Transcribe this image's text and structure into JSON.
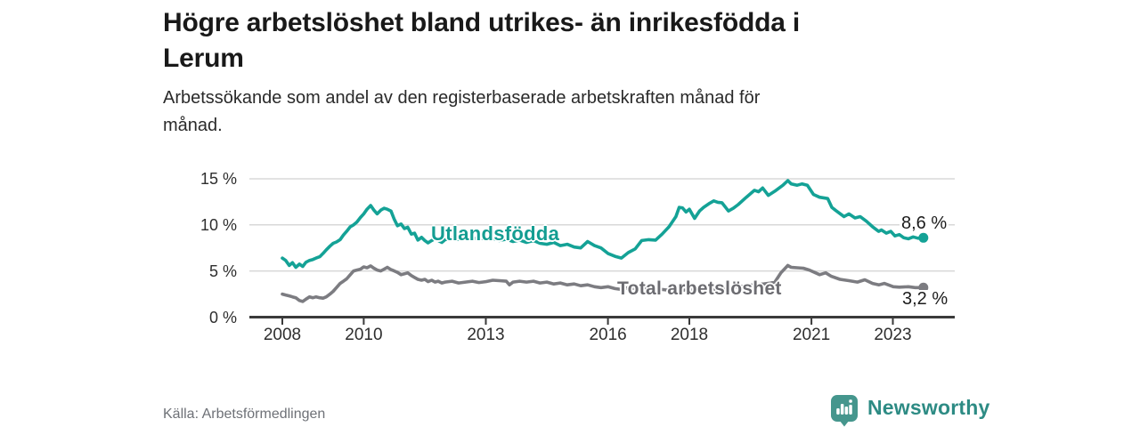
{
  "header": {
    "title": "Högre arbetslöshet bland utrikes- än inrikesfödda i\nLerum",
    "subtitle": "Arbetssökande som andel av den registerbaserade arbetskraften månad för\nmånad."
  },
  "footer": {
    "source": "Källa: Arbetsförmedlingen",
    "logo_text": "Newsworthy"
  },
  "colors": {
    "series_foreign": "#14a296",
    "series_foreign_label": "#149d92",
    "series_total": "#7c7c81",
    "series_total_label": "#6c6c71",
    "axis": "#3a3a3a",
    "gridline": "#d8d8d8",
    "logo_icon": "#45968d",
    "logo_text": "#2d8b84"
  },
  "chart_data": {
    "type": "line",
    "title": "Högre arbetslöshet bland utrikes- än inrikesfödda i Lerum",
    "subtitle": "Arbetssökande som andel av den registerbaserade arbetskraften månad för månad.",
    "unit": "%",
    "grid": "horizontal",
    "legend_position": "inline-labels",
    "ylim": [
      0,
      15
    ],
    "xlim_years": [
      2008,
      2023.75
    ],
    "y_ticks": [
      {
        "value": 0,
        "label": "0 %"
      },
      {
        "value": 5,
        "label": "5 %"
      },
      {
        "value": 10,
        "label": "10 %"
      },
      {
        "value": 15,
        "label": "15 %"
      }
    ],
    "x_ticks": [
      {
        "value": 2008,
        "label": "2008"
      },
      {
        "value": 2010,
        "label": "2010"
      },
      {
        "value": 2013,
        "label": "2013"
      },
      {
        "value": 2016,
        "label": "2016"
      },
      {
        "value": 2018,
        "label": "2018"
      },
      {
        "value": 2021,
        "label": "2021"
      },
      {
        "value": 2023,
        "label": "2023"
      }
    ],
    "series": [
      {
        "name": "Utlandsfödda",
        "end_label": "8,6 %",
        "end_value": 8.6,
        "color": "#14a296",
        "label_color": "#149d92",
        "points": [
          [
            2008.0,
            6.4
          ],
          [
            2008.08,
            6.15
          ],
          [
            2008.17,
            5.6
          ],
          [
            2008.25,
            5.9
          ],
          [
            2008.33,
            5.4
          ],
          [
            2008.42,
            5.75
          ],
          [
            2008.5,
            5.5
          ],
          [
            2008.58,
            5.95
          ],
          [
            2008.67,
            6.15
          ],
          [
            2008.75,
            6.25
          ],
          [
            2008.83,
            6.4
          ],
          [
            2008.92,
            6.55
          ],
          [
            2009.0,
            6.9
          ],
          [
            2009.08,
            7.3
          ],
          [
            2009.17,
            7.7
          ],
          [
            2009.25,
            8.0
          ],
          [
            2009.33,
            8.15
          ],
          [
            2009.42,
            8.4
          ],
          [
            2009.5,
            8.9
          ],
          [
            2009.58,
            9.3
          ],
          [
            2009.67,
            9.8
          ],
          [
            2009.75,
            10.0
          ],
          [
            2009.83,
            10.3
          ],
          [
            2009.92,
            10.8
          ],
          [
            2010.0,
            11.2
          ],
          [
            2010.08,
            11.7
          ],
          [
            2010.17,
            12.1
          ],
          [
            2010.25,
            11.6
          ],
          [
            2010.33,
            11.2
          ],
          [
            2010.42,
            11.6
          ],
          [
            2010.5,
            11.8
          ],
          [
            2010.58,
            11.7
          ],
          [
            2010.67,
            11.5
          ],
          [
            2010.75,
            10.6
          ],
          [
            2010.83,
            9.9
          ],
          [
            2010.92,
            10.1
          ],
          [
            2011.0,
            9.6
          ],
          [
            2011.08,
            9.75
          ],
          [
            2011.17,
            9.0
          ],
          [
            2011.25,
            9.1
          ],
          [
            2011.33,
            8.35
          ],
          [
            2011.42,
            8.65
          ],
          [
            2011.5,
            8.3
          ],
          [
            2011.58,
            8.05
          ],
          [
            2011.67,
            8.3
          ],
          [
            2011.75,
            8.5
          ],
          [
            2011.83,
            8.3
          ],
          [
            2011.92,
            8.1
          ],
          [
            2012.0,
            8.4
          ],
          [
            2012.17,
            8.6
          ],
          [
            2012.33,
            8.45
          ],
          [
            2012.5,
            8.65
          ],
          [
            2012.67,
            8.5
          ],
          [
            2012.83,
            8.6
          ],
          [
            2013.0,
            8.45
          ],
          [
            2013.17,
            8.55
          ],
          [
            2013.33,
            8.3
          ],
          [
            2013.5,
            8.45
          ],
          [
            2013.67,
            8.2
          ],
          [
            2013.83,
            8.35
          ],
          [
            2014.0,
            8.1
          ],
          [
            2014.17,
            8.3
          ],
          [
            2014.33,
            8.0
          ],
          [
            2014.5,
            7.9
          ],
          [
            2014.67,
            8.1
          ],
          [
            2014.83,
            7.75
          ],
          [
            2015.0,
            7.9
          ],
          [
            2015.17,
            7.6
          ],
          [
            2015.33,
            7.5
          ],
          [
            2015.5,
            8.2
          ],
          [
            2015.67,
            7.75
          ],
          [
            2015.83,
            7.5
          ],
          [
            2016.0,
            6.9
          ],
          [
            2016.17,
            6.6
          ],
          [
            2016.33,
            6.4
          ],
          [
            2016.5,
            7.0
          ],
          [
            2016.67,
            7.4
          ],
          [
            2016.83,
            8.3
          ],
          [
            2017.0,
            8.4
          ],
          [
            2017.17,
            8.35
          ],
          [
            2017.33,
            9.0
          ],
          [
            2017.5,
            9.8
          ],
          [
            2017.67,
            10.9
          ],
          [
            2017.75,
            11.9
          ],
          [
            2017.83,
            11.85
          ],
          [
            2017.92,
            11.4
          ],
          [
            2018.0,
            11.7
          ],
          [
            2018.13,
            10.7
          ],
          [
            2018.25,
            11.5
          ],
          [
            2018.35,
            11.9
          ],
          [
            2018.5,
            12.35
          ],
          [
            2018.6,
            12.6
          ],
          [
            2018.7,
            12.45
          ],
          [
            2018.8,
            12.4
          ],
          [
            2018.96,
            11.5
          ],
          [
            2019.08,
            11.8
          ],
          [
            2019.2,
            12.2
          ],
          [
            2019.4,
            13.0
          ],
          [
            2019.6,
            13.75
          ],
          [
            2019.7,
            13.6
          ],
          [
            2019.8,
            14.0
          ],
          [
            2019.94,
            13.2
          ],
          [
            2020.1,
            13.65
          ],
          [
            2020.3,
            14.3
          ],
          [
            2020.42,
            14.8
          ],
          [
            2020.5,
            14.45
          ],
          [
            2020.65,
            14.3
          ],
          [
            2020.77,
            14.45
          ],
          [
            2020.9,
            14.3
          ],
          [
            2021.05,
            13.3
          ],
          [
            2021.2,
            13.0
          ],
          [
            2021.4,
            12.85
          ],
          [
            2021.5,
            11.9
          ],
          [
            2021.6,
            11.55
          ],
          [
            2021.8,
            10.9
          ],
          [
            2021.92,
            11.2
          ],
          [
            2022.07,
            10.75
          ],
          [
            2022.2,
            10.9
          ],
          [
            2022.35,
            10.4
          ],
          [
            2022.5,
            9.8
          ],
          [
            2022.65,
            9.3
          ],
          [
            2022.72,
            9.45
          ],
          [
            2022.84,
            9.1
          ],
          [
            2022.95,
            9.3
          ],
          [
            2023.05,
            8.8
          ],
          [
            2023.16,
            8.95
          ],
          [
            2023.27,
            8.6
          ],
          [
            2023.38,
            8.5
          ],
          [
            2023.5,
            8.7
          ],
          [
            2023.62,
            8.55
          ],
          [
            2023.75,
            8.6
          ]
        ]
      },
      {
        "name": "Total arbetslöshet",
        "end_label": "3,2 %",
        "end_value": 3.2,
        "color": "#7c7c81",
        "label_color": "#6c6c71",
        "points": [
          [
            2008.0,
            2.5
          ],
          [
            2008.08,
            2.4
          ],
          [
            2008.17,
            2.3
          ],
          [
            2008.25,
            2.2
          ],
          [
            2008.33,
            2.1
          ],
          [
            2008.42,
            1.8
          ],
          [
            2008.5,
            1.7
          ],
          [
            2008.58,
            1.95
          ],
          [
            2008.67,
            2.2
          ],
          [
            2008.75,
            2.1
          ],
          [
            2008.83,
            2.2
          ],
          [
            2008.92,
            2.1
          ],
          [
            2009.0,
            2.05
          ],
          [
            2009.08,
            2.2
          ],
          [
            2009.17,
            2.5
          ],
          [
            2009.25,
            2.8
          ],
          [
            2009.33,
            3.2
          ],
          [
            2009.42,
            3.65
          ],
          [
            2009.5,
            3.9
          ],
          [
            2009.58,
            4.15
          ],
          [
            2009.67,
            4.6
          ],
          [
            2009.75,
            5.0
          ],
          [
            2009.83,
            5.1
          ],
          [
            2009.92,
            5.2
          ],
          [
            2010.0,
            5.45
          ],
          [
            2010.08,
            5.35
          ],
          [
            2010.17,
            5.55
          ],
          [
            2010.25,
            5.3
          ],
          [
            2010.33,
            5.1
          ],
          [
            2010.42,
            5.0
          ],
          [
            2010.5,
            5.2
          ],
          [
            2010.58,
            5.4
          ],
          [
            2010.67,
            5.15
          ],
          [
            2010.75,
            5.0
          ],
          [
            2010.83,
            4.85
          ],
          [
            2010.92,
            4.6
          ],
          [
            2011.0,
            4.7
          ],
          [
            2011.08,
            4.8
          ],
          [
            2011.17,
            4.5
          ],
          [
            2011.25,
            4.3
          ],
          [
            2011.33,
            4.1
          ],
          [
            2011.42,
            4.0
          ],
          [
            2011.5,
            4.1
          ],
          [
            2011.58,
            3.85
          ],
          [
            2011.67,
            4.0
          ],
          [
            2011.75,
            3.8
          ],
          [
            2011.83,
            3.9
          ],
          [
            2011.92,
            3.7
          ],
          [
            2012.0,
            3.8
          ],
          [
            2012.17,
            3.9
          ],
          [
            2012.33,
            3.7
          ],
          [
            2012.5,
            3.8
          ],
          [
            2012.67,
            3.9
          ],
          [
            2012.83,
            3.75
          ],
          [
            2013.0,
            3.85
          ],
          [
            2013.17,
            4.0
          ],
          [
            2013.33,
            3.95
          ],
          [
            2013.5,
            3.9
          ],
          [
            2013.58,
            3.5
          ],
          [
            2013.67,
            3.8
          ],
          [
            2013.83,
            3.9
          ],
          [
            2014.0,
            3.8
          ],
          [
            2014.17,
            3.9
          ],
          [
            2014.33,
            3.7
          ],
          [
            2014.5,
            3.8
          ],
          [
            2014.67,
            3.6
          ],
          [
            2014.83,
            3.7
          ],
          [
            2015.0,
            3.5
          ],
          [
            2015.17,
            3.6
          ],
          [
            2015.33,
            3.4
          ],
          [
            2015.5,
            3.5
          ],
          [
            2015.67,
            3.3
          ],
          [
            2015.83,
            3.2
          ],
          [
            2016.0,
            3.3
          ],
          [
            2016.17,
            3.1
          ],
          [
            2016.33,
            3.0
          ],
          [
            2016.5,
            3.2
          ],
          [
            2016.67,
            3.1
          ],
          [
            2016.83,
            3.0
          ],
          [
            2017.0,
            3.1
          ],
          [
            2017.17,
            2.9
          ],
          [
            2017.33,
            3.0
          ],
          [
            2017.5,
            2.9
          ],
          [
            2017.67,
            2.85
          ],
          [
            2017.83,
            2.9
          ],
          [
            2018.0,
            3.0
          ],
          [
            2018.17,
            2.9
          ],
          [
            2018.33,
            3.0
          ],
          [
            2018.5,
            3.1
          ],
          [
            2018.67,
            3.0
          ],
          [
            2018.83,
            3.1
          ],
          [
            2019.0,
            3.2
          ],
          [
            2019.17,
            3.3
          ],
          [
            2019.33,
            3.35
          ],
          [
            2019.5,
            3.45
          ],
          [
            2019.67,
            3.55
          ],
          [
            2019.83,
            3.6
          ],
          [
            2020.0,
            3.7
          ],
          [
            2020.1,
            3.8
          ],
          [
            2020.25,
            4.8
          ],
          [
            2020.42,
            5.6
          ],
          [
            2020.5,
            5.4
          ],
          [
            2020.65,
            5.35
          ],
          [
            2020.8,
            5.3
          ],
          [
            2020.95,
            5.1
          ],
          [
            2021.1,
            4.8
          ],
          [
            2021.2,
            4.6
          ],
          [
            2021.35,
            4.8
          ],
          [
            2021.48,
            4.45
          ],
          [
            2021.7,
            4.1
          ],
          [
            2021.92,
            3.95
          ],
          [
            2022.13,
            3.8
          ],
          [
            2022.31,
            4.05
          ],
          [
            2022.5,
            3.65
          ],
          [
            2022.66,
            3.5
          ],
          [
            2022.79,
            3.65
          ],
          [
            2023.01,
            3.3
          ],
          [
            2023.16,
            3.25
          ],
          [
            2023.38,
            3.3
          ],
          [
            2023.55,
            3.2
          ],
          [
            2023.75,
            3.2
          ]
        ]
      }
    ]
  }
}
